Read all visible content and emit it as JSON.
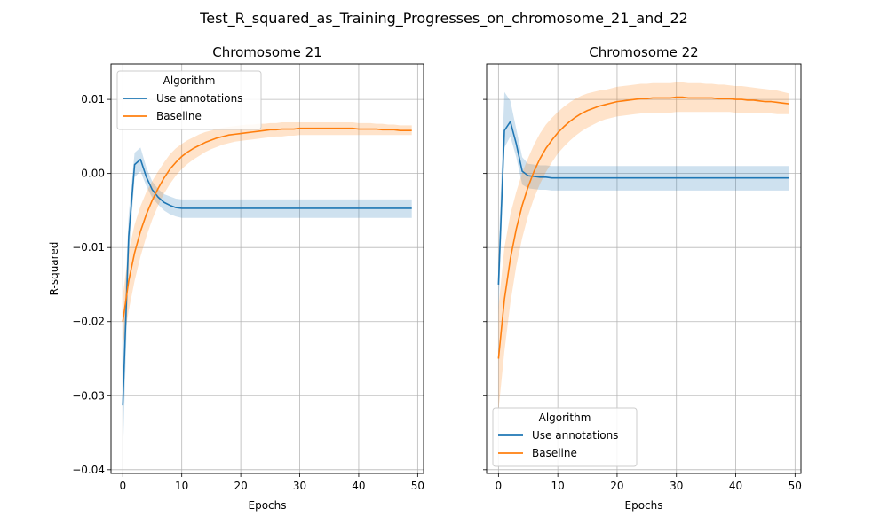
{
  "suptitle": "Test_R_squared_as_Training_Progresses_on_chromosome_21_and_22",
  "chart_data": [
    {
      "type": "line",
      "title": "Chromosome 21",
      "xlabel": "Epochs",
      "ylabel": "R-squared",
      "xlim": [
        -2,
        51
      ],
      "ylim": [
        -0.0405,
        0.0148
      ],
      "xticks": [
        0,
        10,
        20,
        30,
        40,
        50
      ],
      "yticks": [
        -0.04,
        -0.03,
        -0.02,
        -0.01,
        0.0,
        0.01
      ],
      "ytick_labels": [
        "−0.04",
        "−0.03",
        "−0.02",
        "−0.01",
        "0.00",
        "0.01"
      ],
      "grid": true,
      "legend": {
        "title": "Algorithm",
        "placement": "upper left"
      },
      "x": [
        0,
        1,
        2,
        3,
        4,
        5,
        6,
        7,
        8,
        9,
        10,
        11,
        12,
        13,
        14,
        15,
        16,
        17,
        18,
        19,
        20,
        21,
        22,
        23,
        24,
        25,
        26,
        27,
        28,
        29,
        30,
        31,
        32,
        33,
        34,
        35,
        36,
        37,
        38,
        39,
        40,
        41,
        42,
        43,
        44,
        45,
        46,
        47,
        48,
        49
      ],
      "series": [
        {
          "name": "Use annotations",
          "color": "#1f77b4",
          "values": [
            -0.0313,
            -0.0085,
            0.0012,
            0.0019,
            -0.0005,
            -0.0022,
            -0.0032,
            -0.0039,
            -0.0043,
            -0.0046,
            -0.0047,
            -0.0047,
            -0.0047,
            -0.0047,
            -0.0047,
            -0.0047,
            -0.0047,
            -0.0047,
            -0.0047,
            -0.0047,
            -0.0047,
            -0.0047,
            -0.0047,
            -0.0047,
            -0.0047,
            -0.0047,
            -0.0047,
            -0.0047,
            -0.0047,
            -0.0047,
            -0.0047,
            -0.0047,
            -0.0047,
            -0.0047,
            -0.0047,
            -0.0047,
            -0.0047,
            -0.0047,
            -0.0047,
            -0.0047,
            -0.0047,
            -0.0047,
            -0.0047,
            -0.0047,
            -0.0047,
            -0.0047,
            -0.0047,
            -0.0047,
            -0.0047,
            -0.0047
          ],
          "lower": [
            -0.0385,
            -0.0115,
            -0.0005,
            0.0003,
            -0.0017,
            -0.0033,
            -0.0042,
            -0.005,
            -0.0055,
            -0.0058,
            -0.006,
            -0.006,
            -0.006,
            -0.006,
            -0.006,
            -0.006,
            -0.006,
            -0.006,
            -0.006,
            -0.006,
            -0.006,
            -0.006,
            -0.006,
            -0.006,
            -0.006,
            -0.006,
            -0.006,
            -0.006,
            -0.006,
            -0.006,
            -0.006,
            -0.006,
            -0.006,
            -0.006,
            -0.006,
            -0.006,
            -0.006,
            -0.006,
            -0.006,
            -0.006,
            -0.006,
            -0.006,
            -0.006,
            -0.006,
            -0.006,
            -0.006,
            -0.006,
            -0.006,
            -0.006,
            -0.006
          ],
          "upper": [
            -0.024,
            -0.0055,
            0.0028,
            0.0035,
            0.0008,
            -0.0011,
            -0.0021,
            -0.0028,
            -0.0031,
            -0.0034,
            -0.0035,
            -0.0035,
            -0.0035,
            -0.0035,
            -0.0035,
            -0.0035,
            -0.0035,
            -0.0035,
            -0.0035,
            -0.0035,
            -0.0035,
            -0.0035,
            -0.0035,
            -0.0035,
            -0.0035,
            -0.0035,
            -0.0035,
            -0.0035,
            -0.0035,
            -0.0035,
            -0.0035,
            -0.0035,
            -0.0035,
            -0.0035,
            -0.0035,
            -0.0035,
            -0.0035,
            -0.0035,
            -0.0035,
            -0.0035,
            -0.0035,
            -0.0035,
            -0.0035,
            -0.0035,
            -0.0035,
            -0.0035,
            -0.0035,
            -0.0035,
            -0.0035,
            -0.0035
          ]
        },
        {
          "name": "Baseline",
          "color": "#ff7f0e",
          "values": [
            -0.02,
            -0.0145,
            -0.0107,
            -0.0078,
            -0.0055,
            -0.0036,
            -0.002,
            -0.0006,
            0.0006,
            0.0015,
            0.0023,
            0.0029,
            0.0034,
            0.0038,
            0.0042,
            0.0045,
            0.0048,
            0.005,
            0.0052,
            0.0053,
            0.0054,
            0.0055,
            0.0056,
            0.0057,
            0.0058,
            0.0059,
            0.0059,
            0.006,
            0.006,
            0.006,
            0.0061,
            0.0061,
            0.0061,
            0.0061,
            0.0061,
            0.0061,
            0.0061,
            0.0061,
            0.0061,
            0.0061,
            0.006,
            0.006,
            0.006,
            0.006,
            0.0059,
            0.0059,
            0.0059,
            0.0058,
            0.0058,
            0.0058
          ],
          "lower": [
            -0.0235,
            -0.0185,
            -0.0145,
            -0.0112,
            -0.0085,
            -0.0062,
            -0.0043,
            -0.0027,
            -0.0014,
            -0.0003,
            0.0006,
            0.0013,
            0.0019,
            0.0024,
            0.0029,
            0.0033,
            0.0036,
            0.0039,
            0.0041,
            0.0043,
            0.0044,
            0.0045,
            0.0046,
            0.0047,
            0.0048,
            0.0049,
            0.005,
            0.005,
            0.0051,
            0.0051,
            0.0052,
            0.0052,
            0.0052,
            0.0052,
            0.0052,
            0.0052,
            0.0052,
            0.0052,
            0.0052,
            0.0052,
            0.0052,
            0.0052,
            0.0052,
            0.0052,
            0.0052,
            0.0052,
            0.0052,
            0.0052,
            0.0052,
            0.0052
          ],
          "upper": [
            -0.0165,
            -0.0105,
            -0.0069,
            -0.0044,
            -0.0025,
            -0.001,
            0.0003,
            0.0015,
            0.0026,
            0.0034,
            0.004,
            0.0045,
            0.0049,
            0.0053,
            0.0056,
            0.0058,
            0.006,
            0.0062,
            0.0063,
            0.0064,
            0.0065,
            0.0066,
            0.0066,
            0.0067,
            0.0067,
            0.0068,
            0.0068,
            0.0069,
            0.0069,
            0.0069,
            0.0069,
            0.0069,
            0.0069,
            0.0069,
            0.0069,
            0.0069,
            0.0069,
            0.0069,
            0.0069,
            0.0069,
            0.0068,
            0.0068,
            0.0068,
            0.0067,
            0.0067,
            0.0066,
            0.0066,
            0.0065,
            0.0065,
            0.0065
          ]
        }
      ]
    },
    {
      "type": "line",
      "title": "Chromosome 22",
      "xlabel": "Epochs",
      "ylabel": "",
      "xlim": [
        -2,
        51
      ],
      "ylim": [
        -0.0405,
        0.0148
      ],
      "xticks": [
        0,
        10,
        20,
        30,
        40,
        50
      ],
      "yticks": [
        -0.04,
        -0.03,
        -0.02,
        -0.01,
        0.0,
        0.01
      ],
      "ytick_labels": [
        "",
        "",
        "",
        "",
        "",
        ""
      ],
      "grid": true,
      "legend": {
        "title": "Algorithm",
        "placement": "lower left"
      },
      "x": [
        0,
        1,
        2,
        3,
        4,
        5,
        6,
        7,
        8,
        9,
        10,
        11,
        12,
        13,
        14,
        15,
        16,
        17,
        18,
        19,
        20,
        21,
        22,
        23,
        24,
        25,
        26,
        27,
        28,
        29,
        30,
        31,
        32,
        33,
        34,
        35,
        36,
        37,
        38,
        39,
        40,
        41,
        42,
        43,
        44,
        45,
        46,
        47,
        48,
        49
      ],
      "series": [
        {
          "name": "Use annotations",
          "color": "#1f77b4",
          "values": [
            -0.015,
            0.0058,
            0.007,
            0.004,
            0.0003,
            -0.0003,
            -0.0004,
            -0.0005,
            -0.0005,
            -0.0006,
            -0.0006,
            -0.0006,
            -0.0006,
            -0.0006,
            -0.0006,
            -0.0006,
            -0.0006,
            -0.0006,
            -0.0006,
            -0.0006,
            -0.0006,
            -0.0006,
            -0.0006,
            -0.0006,
            -0.0006,
            -0.0006,
            -0.0006,
            -0.0006,
            -0.0006,
            -0.0006,
            -0.0006,
            -0.0006,
            -0.0006,
            -0.0006,
            -0.0006,
            -0.0006,
            -0.0006,
            -0.0006,
            -0.0006,
            -0.0006,
            -0.0006,
            -0.0006,
            -0.0006,
            -0.0006,
            -0.0006,
            -0.0006,
            -0.0006,
            -0.0006,
            -0.0006,
            -0.0006
          ],
          "lower": [
            -0.019,
            0.0035,
            0.005,
            0.0022,
            -0.0015,
            -0.002,
            -0.0021,
            -0.0022,
            -0.0022,
            -0.0023,
            -0.0023,
            -0.0023,
            -0.0023,
            -0.0023,
            -0.0023,
            -0.0023,
            -0.0023,
            -0.0023,
            -0.0023,
            -0.0023,
            -0.0023,
            -0.0023,
            -0.0023,
            -0.0023,
            -0.0023,
            -0.0023,
            -0.0023,
            -0.0023,
            -0.0023,
            -0.0023,
            -0.0023,
            -0.0023,
            -0.0023,
            -0.0023,
            -0.0023,
            -0.0023,
            -0.0023,
            -0.0023,
            -0.0023,
            -0.0023,
            -0.0023,
            -0.0023,
            -0.0023,
            -0.0023,
            -0.0023,
            -0.0023,
            -0.0023,
            -0.0023,
            -0.0023,
            -0.0023
          ],
          "upper": [
            -0.011,
            0.011,
            0.0098,
            0.006,
            0.0022,
            0.0013,
            0.0012,
            0.0011,
            0.0011,
            0.001,
            0.001,
            0.001,
            0.001,
            0.001,
            0.001,
            0.001,
            0.001,
            0.001,
            0.001,
            0.001,
            0.001,
            0.001,
            0.001,
            0.001,
            0.001,
            0.001,
            0.001,
            0.001,
            0.001,
            0.001,
            0.001,
            0.001,
            0.001,
            0.001,
            0.001,
            0.001,
            0.001,
            0.001,
            0.001,
            0.001,
            0.001,
            0.001,
            0.001,
            0.001,
            0.001,
            0.001,
            0.001,
            0.001,
            0.001,
            0.001
          ]
        },
        {
          "name": "Baseline",
          "color": "#ff7f0e",
          "values": [
            -0.025,
            -0.017,
            -0.0115,
            -0.0075,
            -0.0043,
            -0.0018,
            0.0003,
            0.002,
            0.0034,
            0.0045,
            0.0055,
            0.0063,
            0.007,
            0.0076,
            0.0081,
            0.0085,
            0.0088,
            0.0091,
            0.0093,
            0.0095,
            0.0097,
            0.0098,
            0.0099,
            0.01,
            0.0101,
            0.0101,
            0.0102,
            0.0102,
            0.0102,
            0.0102,
            0.0103,
            0.0103,
            0.0102,
            0.0102,
            0.0102,
            0.0102,
            0.0102,
            0.0101,
            0.0101,
            0.0101,
            0.01,
            0.01,
            0.0099,
            0.0099,
            0.0098,
            0.0097,
            0.0097,
            0.0096,
            0.0095,
            0.0094
          ],
          "lower": [
            -0.032,
            -0.024,
            -0.0175,
            -0.0125,
            -0.0087,
            -0.0057,
            -0.0033,
            -0.0014,
            0.0002,
            0.0015,
            0.0027,
            0.0036,
            0.0044,
            0.0051,
            0.0057,
            0.0062,
            0.0066,
            0.007,
            0.0073,
            0.0075,
            0.0077,
            0.0078,
            0.0079,
            0.008,
            0.0081,
            0.0081,
            0.0082,
            0.0082,
            0.0082,
            0.0082,
            0.0083,
            0.0083,
            0.0083,
            0.0083,
            0.0083,
            0.0083,
            0.0083,
            0.0083,
            0.0083,
            0.0083,
            0.0082,
            0.0082,
            0.0082,
            0.0082,
            0.0081,
            0.0081,
            0.0081,
            0.008,
            0.008,
            0.008
          ],
          "upper": [
            -0.018,
            -0.01,
            -0.0055,
            -0.0025,
            0.0001,
            0.0021,
            0.0039,
            0.0054,
            0.0066,
            0.0075,
            0.0083,
            0.009,
            0.0096,
            0.0101,
            0.0105,
            0.0108,
            0.011,
            0.0112,
            0.0113,
            0.0115,
            0.0117,
            0.0118,
            0.0119,
            0.012,
            0.0121,
            0.0121,
            0.0122,
            0.0122,
            0.0122,
            0.0122,
            0.0123,
            0.0123,
            0.0122,
            0.0122,
            0.0122,
            0.0121,
            0.0121,
            0.012,
            0.012,
            0.0119,
            0.0118,
            0.0118,
            0.0117,
            0.0116,
            0.0115,
            0.0114,
            0.0113,
            0.0112,
            0.011,
            0.0108
          ]
        }
      ]
    }
  ]
}
